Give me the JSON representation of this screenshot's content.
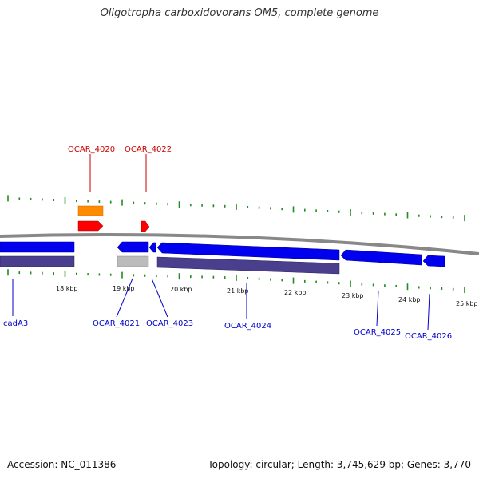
{
  "title": "Oligotropha carboxidovorans OM5, complete genome",
  "accession": "Accession: NC_011386",
  "topology": "Topology: circular; Length: 3,745,629 bp; Genes: 3,770",
  "colors": {
    "forward_cds": "#ff0000",
    "forward_gene": "#ff8c00",
    "reverse_cds": "#0000ee",
    "reverse_gene": "#4a3f8c",
    "pseudo_gene": "#bbbbbb",
    "backbone": "#888888",
    "ticks": "#228b22",
    "label_forward": "#cc0000",
    "label_reverse": "#0000cc"
  },
  "kbp_labels": [
    "18 kbp",
    "19 kbp",
    "20 kbp",
    "21 kbp",
    "22 kbp",
    "23 kbp",
    "24 kbp",
    "25 kbp"
  ],
  "forward_labels": [
    "OCAR_4020",
    "OCAR_4022"
  ],
  "reverse_labels": [
    "cadA3",
    "OCAR_4021",
    "OCAR_4023",
    "OCAR_4024",
    "OCAR_4025",
    "OCAR_4026"
  ]
}
